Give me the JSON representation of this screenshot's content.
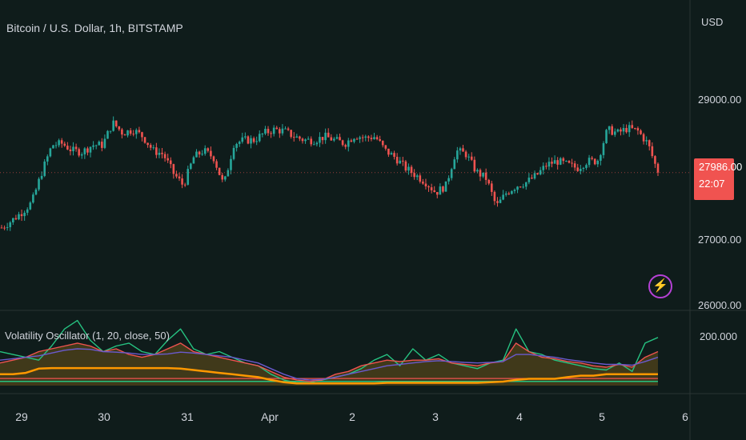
{
  "header": {
    "title": "Bitcoin / U.S. Dollar, 1h, BITSTAMP"
  },
  "price_axis": {
    "currency": "USD",
    "ticks": [
      "29000.00",
      "27000.00",
      "26000.00"
    ]
  },
  "last_price": {
    "price": "27986.00",
    "countdown": "22:07",
    "color": "#f05350"
  },
  "oscillator": {
    "title": "Volatility Oscillator (1, 20, close, 50)",
    "tick": "200.000"
  },
  "time_axis": {
    "ticks": [
      "29",
      "30",
      "31",
      "Apr",
      "2",
      "3",
      "4",
      "5",
      "6"
    ]
  },
  "colors": {
    "background": "#0f1c1b",
    "up": "#26a69a",
    "down": "#ef5350",
    "grid": "#2a3433"
  },
  "icons": {
    "alert": "lightning-bolt-icon"
  },
  "chart_data": [
    {
      "type": "candlestick",
      "title": "Bitcoin / U.S. Dollar, 1h, BITSTAMP",
      "ylabel": "USD",
      "ylim": [
        26000,
        29600
      ],
      "x": [
        "29",
        "30",
        "31",
        "Apr",
        "2",
        "3",
        "4",
        "5",
        "6"
      ],
      "close_path_usd": [
        27200,
        27300,
        27420,
        27560,
        28000,
        28380,
        28400,
        28300,
        28280,
        28380,
        28380,
        28700,
        28550,
        28600,
        28500,
        28300,
        28250,
        27980,
        27800,
        28200,
        28300,
        28200,
        27800,
        28400,
        28450,
        28450,
        28550,
        28600,
        28580,
        28500,
        28450,
        28450,
        28500,
        28450,
        28400,
        28520,
        28480,
        28500,
        28300,
        28200,
        28050,
        27950,
        27850,
        27700,
        27800,
        28300,
        28250,
        28000,
        27900,
        27500,
        27700,
        27800,
        27850,
        27950,
        28100,
        28150,
        28100,
        28050,
        28150,
        28150,
        28600,
        28550,
        28620,
        28580,
        28400,
        27986
      ],
      "last": 27986
    },
    {
      "type": "line",
      "title": "Volatility Oscillator (1, 20, close, 50)",
      "ylim": [
        0,
        260
      ],
      "series": [
        {
          "color": "#26c281",
          "values": [
            120,
            110,
            100,
            90,
            140,
            200,
            230,
            160,
            120,
            140,
            150,
            120,
            110,
            160,
            200,
            130,
            110,
            120,
            100,
            80,
            70,
            40,
            20,
            10,
            10,
            20,
            30,
            40,
            60,
            90,
            110,
            70,
            130,
            90,
            110,
            80,
            70,
            60,
            80,
            90,
            200,
            120,
            110,
            90,
            80,
            70,
            60,
            55,
            80,
            50,
            150,
            170
          ]
        },
        {
          "color": "#ef5350",
          "values": [
            80,
            90,
            100,
            120,
            130,
            140,
            150,
            140,
            120,
            130,
            110,
            100,
            110,
            130,
            150,
            120,
            110,
            100,
            90,
            80,
            70,
            50,
            30,
            20,
            15,
            20,
            40,
            50,
            70,
            80,
            90,
            85,
            90,
            90,
            95,
            80,
            75,
            70,
            80,
            85,
            150,
            120,
            100,
            95,
            85,
            80,
            70,
            65,
            75,
            65,
            100,
            120
          ]
        },
        {
          "color": "#6a5acd",
          "values": [
            90,
            95,
            100,
            105,
            115,
            125,
            130,
            128,
            120,
            118,
            115,
            110,
            110,
            112,
            118,
            115,
            110,
            105,
            100,
            90,
            80,
            60,
            40,
            25,
            20,
            22,
            30,
            40,
            50,
            60,
            70,
            75,
            80,
            85,
            88,
            85,
            82,
            80,
            82,
            85,
            110,
            110,
            105,
            100,
            92,
            86,
            80,
            75,
            75,
            72,
            85,
            100
          ]
        },
        {
          "color": "#ff9800",
          "values": [
            40,
            40,
            45,
            60,
            62,
            62,
            62,
            62,
            62,
            62,
            62,
            62,
            62,
            62,
            60,
            55,
            50,
            45,
            40,
            35,
            30,
            20,
            12,
            8,
            8,
            8,
            8,
            8,
            8,
            8,
            10,
            10,
            10,
            10,
            10,
            10,
            10,
            10,
            12,
            14,
            20,
            24,
            24,
            24,
            30,
            35,
            35,
            40,
            40,
            40,
            40,
            40
          ]
        }
      ]
    }
  ]
}
